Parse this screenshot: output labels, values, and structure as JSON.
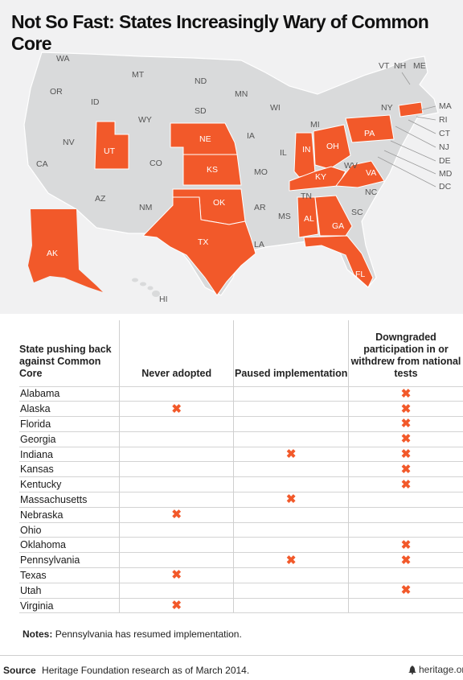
{
  "title": "Not So Fast: States Increasingly Wary of Common Core",
  "colors": {
    "highlight": "#f2592a",
    "base": "#d9dadb",
    "background": "#f1f1f2"
  },
  "chart_data": {
    "type": "table",
    "map_labels": [
      "WA",
      "OR",
      "CA",
      "NV",
      "ID",
      "MT",
      "WY",
      "UT",
      "AZ",
      "CO",
      "NM",
      "ND",
      "SD",
      "NE",
      "KS",
      "OK",
      "TX",
      "MN",
      "IA",
      "MO",
      "AR",
      "LA",
      "WI",
      "IL",
      "MS",
      "AL",
      "TN",
      "KY",
      "IN",
      "MI",
      "OH",
      "GA",
      "FL",
      "SC",
      "NC",
      "VA",
      "WV",
      "PA",
      "NY",
      "VT",
      "NH",
      "ME",
      "MA",
      "RI",
      "CT",
      "NJ",
      "DE",
      "MD",
      "DC",
      "AK",
      "HI"
    ],
    "highlighted_states": [
      "UT",
      "NE",
      "KS",
      "OK",
      "TX",
      "IN",
      "OH",
      "KY",
      "AL",
      "GA",
      "FL",
      "VA",
      "PA",
      "MA",
      "AK"
    ],
    "columns": [
      "State pushing back against Common Core",
      "Never adopted",
      "Paused implementation",
      "Downgraded participation in or withdrew from national tests"
    ],
    "rows": [
      {
        "state": "Alabama",
        "never_adopted": false,
        "paused": false,
        "downgraded": true
      },
      {
        "state": "Alaska",
        "never_adopted": true,
        "paused": false,
        "downgraded": true
      },
      {
        "state": "Florida",
        "never_adopted": false,
        "paused": false,
        "downgraded": true
      },
      {
        "state": "Georgia",
        "never_adopted": false,
        "paused": false,
        "downgraded": true
      },
      {
        "state": "Indiana",
        "never_adopted": false,
        "paused": true,
        "downgraded": true
      },
      {
        "state": "Kansas",
        "never_adopted": false,
        "paused": false,
        "downgraded": true
      },
      {
        "state": "Kentucky",
        "never_adopted": false,
        "paused": false,
        "downgraded": true
      },
      {
        "state": "Massachusetts",
        "never_adopted": false,
        "paused": true,
        "downgraded": false
      },
      {
        "state": "Nebraska",
        "never_adopted": true,
        "paused": false,
        "downgraded": false
      },
      {
        "state": "Ohio",
        "never_adopted": false,
        "paused": false,
        "downgraded": false
      },
      {
        "state": "Oklahoma",
        "never_adopted": false,
        "paused": false,
        "downgraded": true
      },
      {
        "state": "Pennsylvania",
        "never_adopted": false,
        "paused": true,
        "downgraded": true
      },
      {
        "state": "Texas",
        "never_adopted": true,
        "paused": false,
        "downgraded": false
      },
      {
        "state": "Utah",
        "never_adopted": false,
        "paused": false,
        "downgraded": true
      },
      {
        "state": "Virginia",
        "never_adopted": true,
        "paused": false,
        "downgraded": false
      }
    ],
    "mark_symbol": "✖"
  },
  "notes": {
    "label": "Notes:",
    "text": "Pennsylvania has resumed implementation."
  },
  "source": {
    "label": "Source",
    "text": "Heritage Foundation research as of March 2014."
  },
  "brand": "heritage.org"
}
